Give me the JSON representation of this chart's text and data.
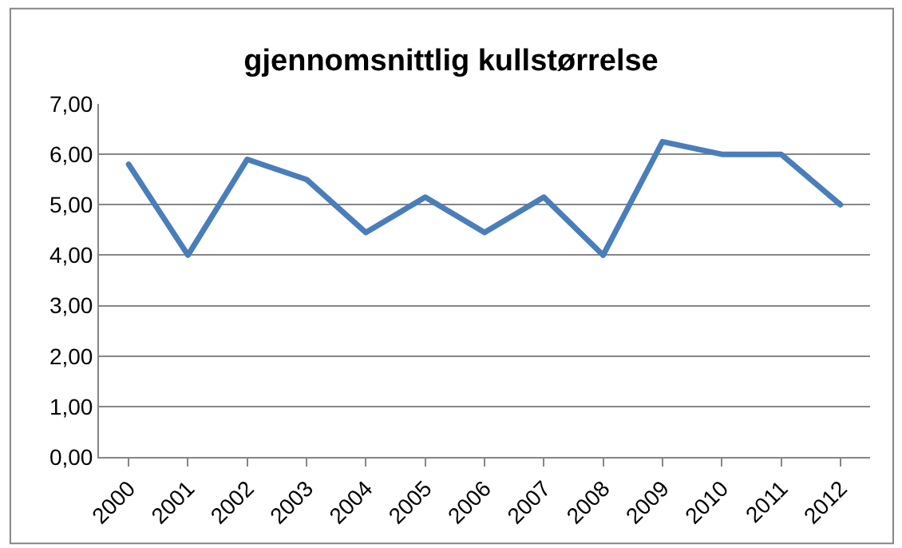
{
  "chart_data": {
    "type": "line",
    "title": "gjennomsnittlig kullstørrelse",
    "categories": [
      "2000",
      "2001",
      "2002",
      "2003",
      "2004",
      "2005",
      "2006",
      "2007",
      "2008",
      "2009",
      "2010",
      "2011",
      "2012"
    ],
    "series": [
      {
        "color": "#4a7ebb",
        "values": [
          5.8,
          4.0,
          5.9,
          5.5,
          4.45,
          5.15,
          4.45,
          5.15,
          4.0,
          6.25,
          6.0,
          6.0,
          5.0
        ]
      }
    ],
    "ylim": [
      0,
      7
    ],
    "yticks": [
      {
        "value": 0,
        "label": "0,00"
      },
      {
        "value": 1,
        "label": "1,00"
      },
      {
        "value": 2,
        "label": "2,00"
      },
      {
        "value": 3,
        "label": "3,00"
      },
      {
        "value": 4,
        "label": "4,00"
      },
      {
        "value": 5,
        "label": "5,00"
      },
      {
        "value": 6,
        "label": "6,00"
      },
      {
        "value": 7,
        "label": "7,00"
      }
    ],
    "grid": "y",
    "marker": "none",
    "line_style": "solid"
  }
}
